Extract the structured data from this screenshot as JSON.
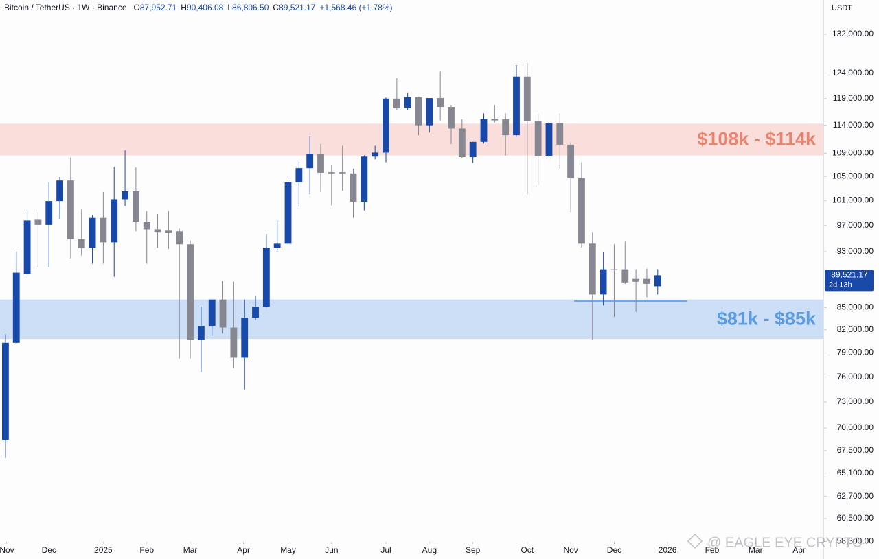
{
  "chart_data": {
    "type": "candlestick",
    "header": {
      "title": "Bitcoin / TetherUS · 1W · Binance",
      "items": [
        {
          "key": "O",
          "text": "87,952.71"
        },
        {
          "key": "H",
          "text": "90,406.08"
        },
        {
          "key": "L",
          "text": "86,806.50"
        },
        {
          "key": "C",
          "text": "89,521.17"
        }
      ],
      "change": "+1,568.46 (+1.78%)"
    },
    "y_axis_unit": "USDT",
    "up_color": "#1848a8",
    "down_color": "#868791",
    "log_scale": true,
    "grid": false,
    "open": [
      68700,
      80300,
      89700,
      97900,
      97100,
      100900,
      104300,
      94900,
      93600,
      98200,
      94400,
      101200,
      102500,
      97600,
      96400,
      96200,
      96100,
      94100,
      80700,
      82500,
      86100,
      82300,
      78400,
      83600,
      85100,
      93600,
      94200,
      104000,
      106400,
      108900,
      105700,
      105700,
      105500,
      100800,
      108400,
      109100,
      119000,
      117200,
      119300,
      114000,
      119100,
      117400,
      113400,
      108300,
      111000,
      115200,
      115100,
      112200,
      123300,
      114800,
      108500,
      114400,
      110500,
      104700,
      94200,
      86800,
      90400,
      90400,
      89000,
      89000,
      87952.71
    ],
    "high": [
      81400,
      93000,
      99500,
      99100,
      104000,
      104900,
      108200,
      99600,
      98700,
      102400,
      106600,
      109500,
      106500,
      99300,
      98800,
      99300,
      96500,
      94700,
      85100,
      86100,
      88700,
      88600,
      86100,
      86600,
      95700,
      97800,
      104300,
      107500,
      112000,
      110600,
      107000,
      110300,
      106300,
      108600,
      110300,
      119200,
      123000,
      120100,
      119400,
      119100,
      124300,
      117800,
      115100,
      111000,
      116200,
      117800,
      116200,
      125600,
      126000,
      116100,
      114600,
      116200,
      110900,
      107400,
      96000,
      92900,
      94100,
      94500,
      90400,
      90500,
      90406.08
    ],
    "low": [
      66700,
      80200,
      89500,
      90700,
      90700,
      98000,
      92000,
      92400,
      91200,
      91200,
      89300,
      100100,
      96100,
      91200,
      93600,
      93400,
      78300,
      78300,
      76600,
      81200,
      81500,
      77100,
      74500,
      83300,
      85000,
      93000,
      94100,
      100000,
      102000,
      102400,
      100200,
      102600,
      98200,
      99400,
      107900,
      107400,
      116900,
      116900,
      112200,
      112700,
      114900,
      110600,
      108200,
      107300,
      110700,
      114500,
      108600,
      111900,
      102000,
      103500,
      108300,
      106300,
      99100,
      93600,
      80700,
      85300,
      83700,
      88300,
      84400,
      86400,
      86806.5
    ],
    "close": [
      80300,
      89900,
      97800,
      97100,
      100900,
      104300,
      94900,
      93500,
      98200,
      94400,
      101200,
      102500,
      97600,
      96400,
      96000,
      95900,
      94100,
      80700,
      82500,
      86100,
      82300,
      78400,
      83600,
      85100,
      93600,
      94200,
      104000,
      106400,
      108900,
      105600,
      105500,
      105500,
      100800,
      108400,
      109100,
      119000,
      117200,
      119300,
      114000,
      119100,
      117400,
      113400,
      108300,
      111000,
      115100,
      114900,
      112200,
      123300,
      114800,
      108500,
      114400,
      110500,
      104700,
      94200,
      86800,
      90400,
      90300,
      88500,
      88600,
      88300,
      89521.17
    ],
    "last_label": {
      "price": "89,521.17",
      "countdown": "2d 13h"
    },
    "zones": [
      {
        "label": "$108k - $114k",
        "from": 108600,
        "to": 114300,
        "fill": "rgba(242,140,128,0.27)",
        "text_color": "#e8846f"
      },
      {
        "label": "$81k - $85k",
        "from": 80800,
        "to": 86100,
        "fill": "rgba(120,168,232,0.36)",
        "text_color": "#5b9be2"
      }
    ],
    "support_line": {
      "value": 85900,
      "x_range": [
        52.4,
        62.6
      ],
      "color": "#6ea8ea"
    },
    "xlim": [
      -0.5,
      75.3
    ],
    "ylim": [
      58270,
      139500
    ],
    "yticks": [
      {
        "value": 132000,
        "label": "132,000.00"
      },
      {
        "value": 124000,
        "label": "124,000.00"
      },
      {
        "value": 119000,
        "label": "119,000.00"
      },
      {
        "value": 114000,
        "label": "114,000.00"
      },
      {
        "value": 109000,
        "label": "109,000.00"
      },
      {
        "value": 105000,
        "label": "105,000.00"
      },
      {
        "value": 101000,
        "label": "101,000.00"
      },
      {
        "value": 97000,
        "label": "97,000.00"
      },
      {
        "value": 93000,
        "label": "93,000.00"
      },
      {
        "value": 85000,
        "label": "85,000.00"
      },
      {
        "value": 82000,
        "label": "82,000.00"
      },
      {
        "value": 79000,
        "label": "79,000.00"
      },
      {
        "value": 76000,
        "label": "76,000.00"
      },
      {
        "value": 73000,
        "label": "73,000.00"
      },
      {
        "value": 70000,
        "label": "70,000.00"
      },
      {
        "value": 67500,
        "label": "67,500.00"
      },
      {
        "value": 65100,
        "label": "65,100.00"
      },
      {
        "value": 62700,
        "label": "62,700.00"
      },
      {
        "value": 60500,
        "label": "60,500.00"
      },
      {
        "value": 58300,
        "label": "58,300.00"
      }
    ],
    "xticks": [
      {
        "value": 0.1,
        "label": "Nov"
      },
      {
        "value": 4,
        "label": "Dec"
      },
      {
        "value": 9,
        "label": "2025"
      },
      {
        "value": 13,
        "label": "Feb"
      },
      {
        "value": 17,
        "label": "Mar"
      },
      {
        "value": 21.9,
        "label": "Apr"
      },
      {
        "value": 26,
        "label": "May"
      },
      {
        "value": 30,
        "label": "Jun"
      },
      {
        "value": 35,
        "label": "Jul"
      },
      {
        "value": 39,
        "label": "Aug"
      },
      {
        "value": 43,
        "label": "Sep"
      },
      {
        "value": 48,
        "label": "Oct"
      },
      {
        "value": 52,
        "label": "Nov"
      },
      {
        "value": 56,
        "label": "Dec"
      },
      {
        "value": 60.9,
        "label": "2026"
      },
      {
        "value": 65,
        "label": "Feb"
      },
      {
        "value": 69,
        "label": "Mar"
      },
      {
        "value": 73,
        "label": "Apr"
      }
    ],
    "watermark": "@ EAGLE EYE CRYPTO"
  }
}
